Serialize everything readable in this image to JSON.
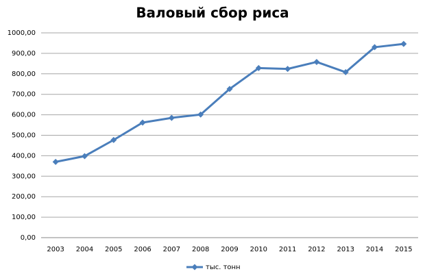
{
  "chart_data": {
    "type": "line",
    "title": "Валовый сбор риса",
    "categories": [
      "2003",
      "2004",
      "2005",
      "2006",
      "2007",
      "2008",
      "2009",
      "2010",
      "2011",
      "2012",
      "2013",
      "2014",
      "2015"
    ],
    "series": [
      {
        "name": "тыс. тонн",
        "color": "#4a7ebb",
        "values": [
          370,
          398,
          477,
          562,
          585,
          601,
          726,
          828,
          824,
          858,
          808,
          930,
          946
        ]
      }
    ],
    "ylim": [
      0,
      1000
    ],
    "yticks": [
      {
        "value": 0,
        "label": "0,00"
      },
      {
        "value": 100,
        "label": "100,00"
      },
      {
        "value": 200,
        "label": "200,00"
      },
      {
        "value": 300,
        "label": "300,00"
      },
      {
        "value": 400,
        "label": "400,00"
      },
      {
        "value": 500,
        "label": "500,00"
      },
      {
        "value": 600,
        "label": "600,00"
      },
      {
        "value": 700,
        "label": "700,00"
      },
      {
        "value": 800,
        "label": "800,00"
      },
      {
        "value": 900,
        "label": "900,00"
      },
      {
        "value": 1000,
        "label": "1000,00"
      }
    ],
    "grid": true,
    "legend": "bottom"
  }
}
